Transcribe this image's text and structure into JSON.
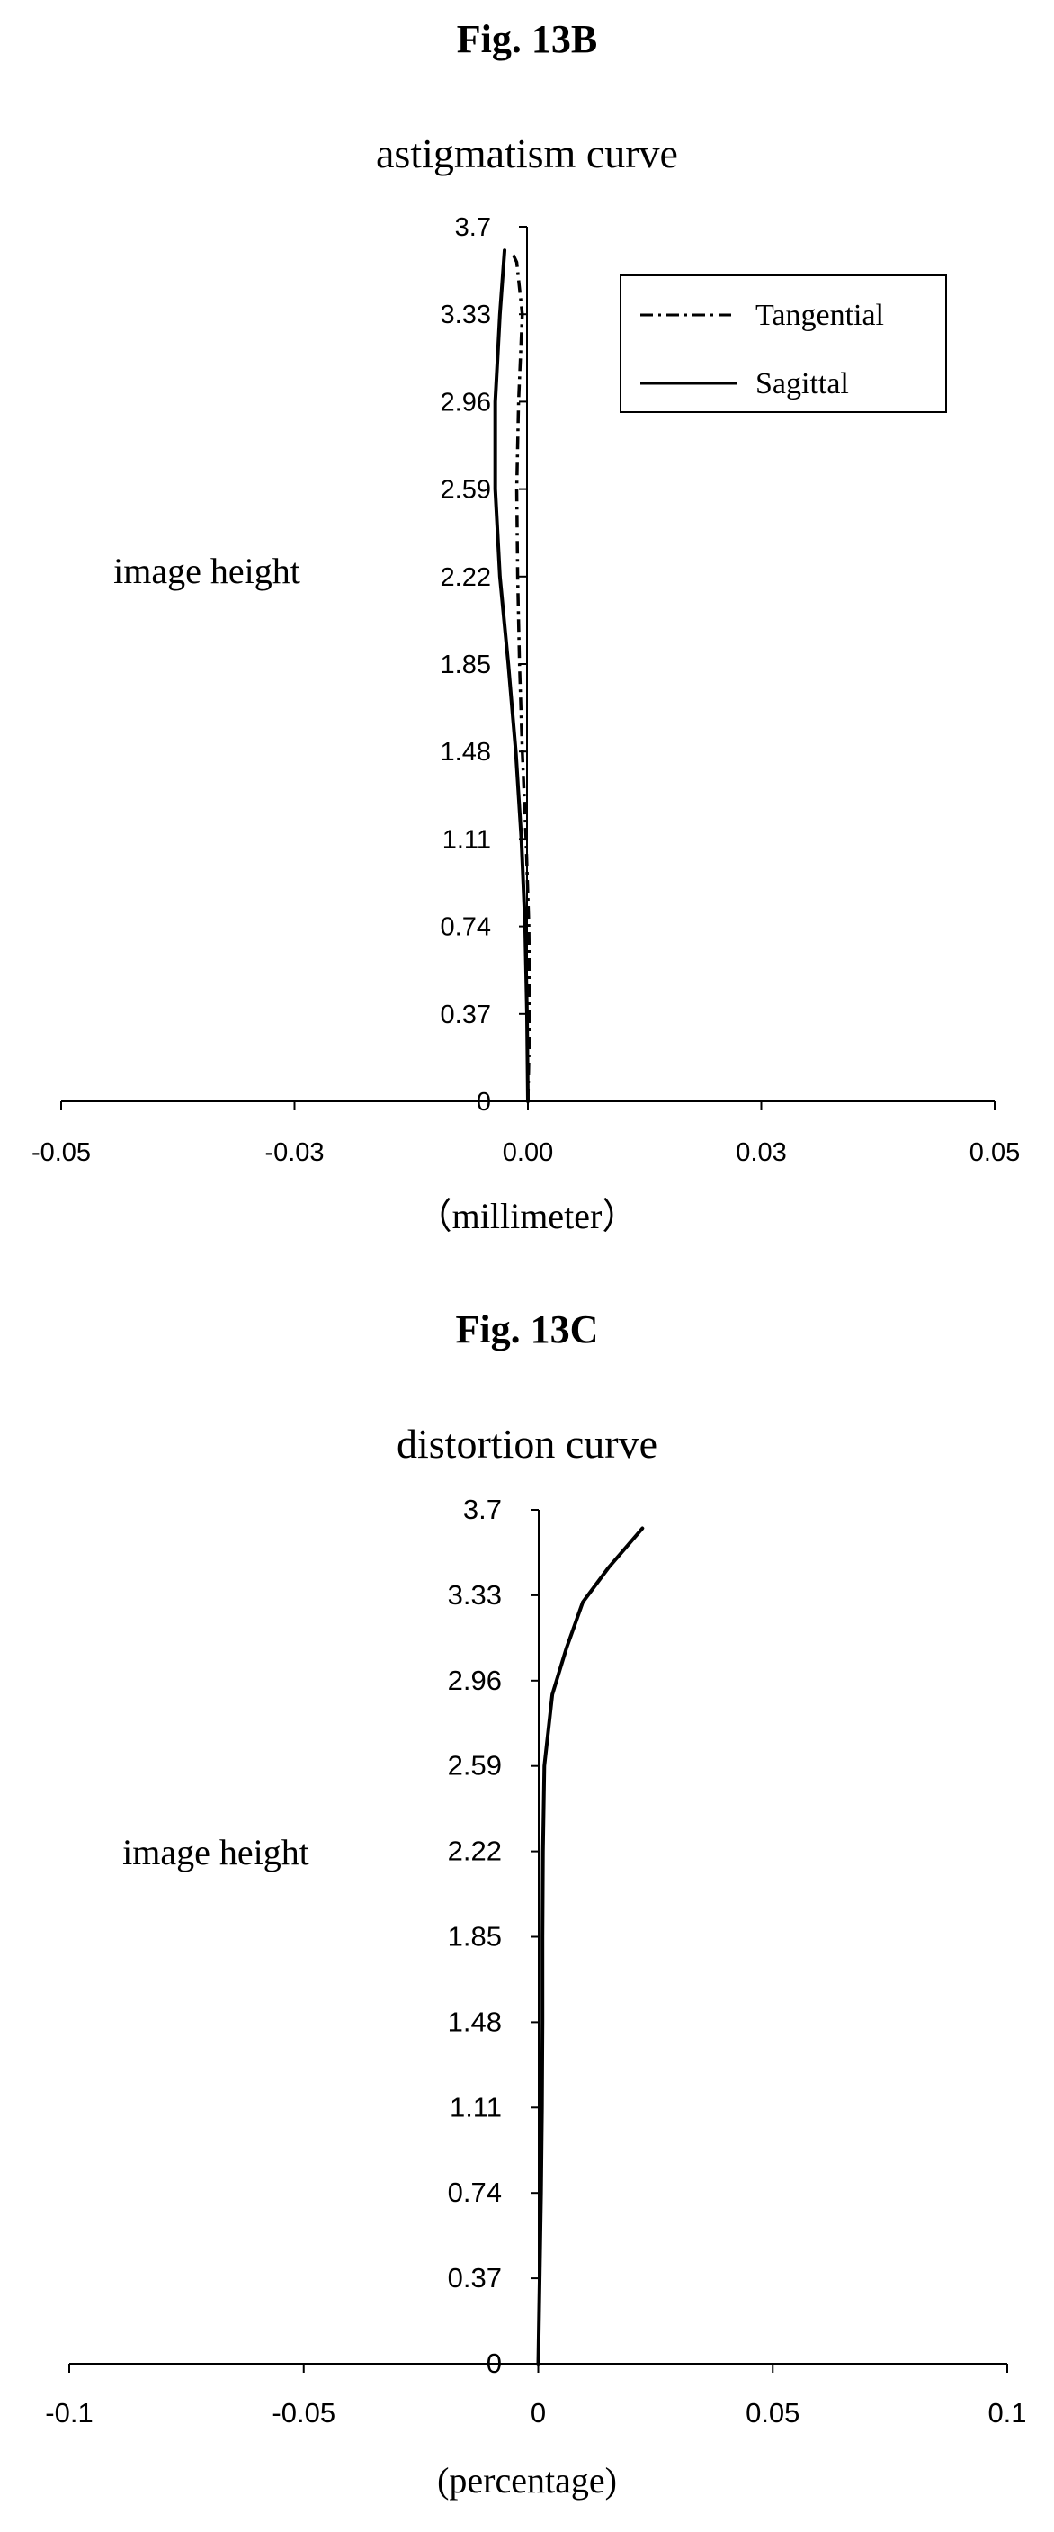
{
  "chart_data": [
    {
      "type": "line",
      "figure_label": "Fig. 13B",
      "title": "astigmatism curve",
      "xlabel": "（millimeter）",
      "ylabel": "image height",
      "xlim": [
        -0.05,
        0.05
      ],
      "ylim": [
        0,
        3.7
      ],
      "x_ticks": [
        -0.05,
        -0.025,
        0,
        0.025,
        0.05
      ],
      "x_tick_labels": [
        "-0.05",
        "-0.03",
        "0.00",
        "0.03",
        "0.05"
      ],
      "y_ticks": [
        0,
        0.37,
        0.74,
        1.11,
        1.48,
        1.85,
        2.22,
        2.59,
        2.96,
        3.33,
        3.7
      ],
      "y_tick_labels": [
        "0",
        "0.37",
        "0.74",
        "1.11",
        "1.48",
        "1.85",
        "2.22",
        "2.59",
        "2.96",
        "3.33",
        "3.7"
      ],
      "grid": false,
      "legend_position": "top-right",
      "series": [
        {
          "name": "Tangential",
          "line_style": "dash-dot",
          "color": "#000000",
          "points": [
            [
              0,
              0
            ],
            [
              0.0002,
              0.37
            ],
            [
              0.0001,
              0.74
            ],
            [
              -0.0002,
              1.11
            ],
            [
              -0.0006,
              1.48
            ],
            [
              -0.0009,
              1.85
            ],
            [
              -0.0011,
              2.22
            ],
            [
              -0.0012,
              2.59
            ],
            [
              -0.001,
              2.96
            ],
            [
              -0.0006,
              3.33
            ],
            [
              -0.0012,
              3.55
            ],
            [
              -0.0018,
              3.6
            ]
          ]
        },
        {
          "name": "Sagittal",
          "line_style": "solid",
          "color": "#000000",
          "points": [
            [
              0,
              0
            ],
            [
              -0.0001,
              0.37
            ],
            [
              -0.0003,
              0.74
            ],
            [
              -0.0007,
              1.11
            ],
            [
              -0.0013,
              1.48
            ],
            [
              -0.0021,
              1.85
            ],
            [
              -0.003,
              2.22
            ],
            [
              -0.0035,
              2.59
            ],
            [
              -0.0035,
              2.96
            ],
            [
              -0.003,
              3.33
            ],
            [
              -0.0025,
              3.6
            ]
          ]
        }
      ]
    },
    {
      "type": "line",
      "figure_label": "Fig. 13C",
      "title": "distortion curve",
      "xlabel": "(percentage)",
      "ylabel": "image height",
      "xlim": [
        -0.1,
        0.1
      ],
      "ylim": [
        0,
        3.7
      ],
      "x_ticks": [
        -0.1,
        -0.05,
        0,
        0.05,
        0.1
      ],
      "x_tick_labels": [
        "-0.1",
        "-0.05",
        "0",
        "0.05",
        "0.1"
      ],
      "y_ticks": [
        0,
        0.37,
        0.74,
        1.11,
        1.48,
        1.85,
        2.22,
        2.59,
        2.96,
        3.33,
        3.7
      ],
      "y_tick_labels": [
        "0",
        "0.37",
        "0.74",
        "1.11",
        "1.48",
        "1.85",
        "2.22",
        "2.59",
        "2.96",
        "3.33",
        "3.7"
      ],
      "grid": false,
      "legend_position": "none",
      "series": [
        {
          "line_style": "solid",
          "color": "#000000",
          "points": [
            [
              0,
              0
            ],
            [
              0.0003,
              0.37
            ],
            [
              0.0006,
              0.74
            ],
            [
              0.0008,
              1.11
            ],
            [
              0.0009,
              1.48
            ],
            [
              0.0009,
              1.85
            ],
            [
              0.001,
              2.22
            ],
            [
              0.0013,
              2.59
            ],
            [
              0.003,
              2.9
            ],
            [
              0.006,
              3.1
            ],
            [
              0.0095,
              3.3
            ],
            [
              0.015,
              3.45
            ],
            [
              0.0222,
              3.62
            ]
          ]
        }
      ]
    }
  ]
}
